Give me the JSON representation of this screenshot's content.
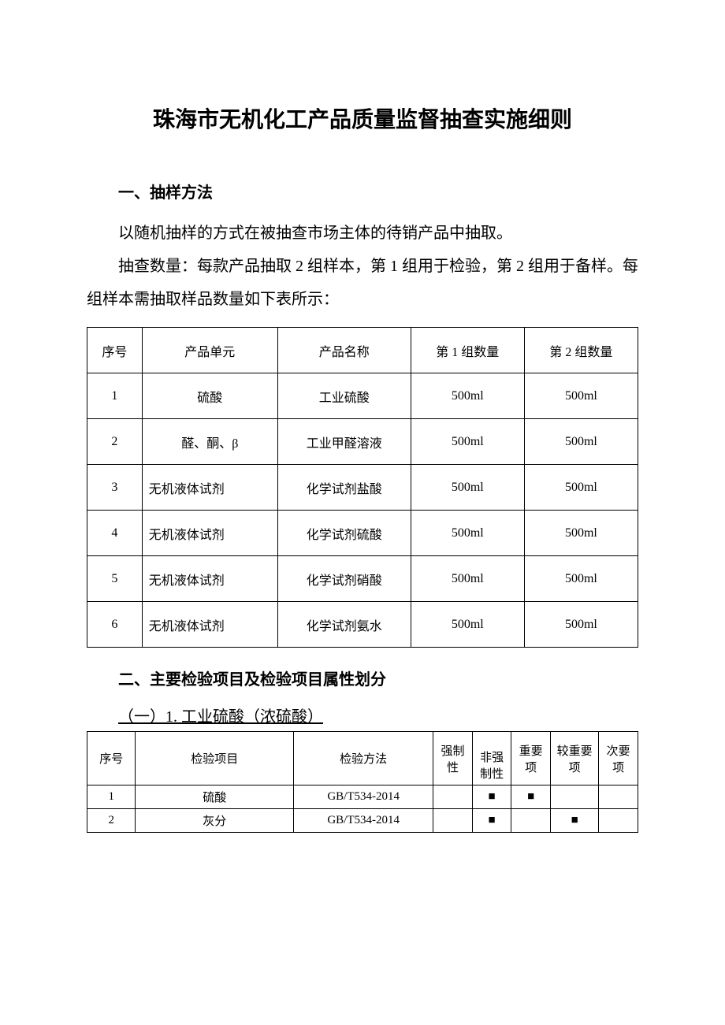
{
  "title": "珠海市无机化工产品质量监督抽查实施细则",
  "section1": {
    "heading": "一、抽样方法",
    "p1": "以随机抽样的方式在被抽查市场主体的待销产品中抽取。",
    "p2": "抽查数量：每款产品抽取 2 组样本，第 1 组用于检验，第 2 组用于备样。每组样本需抽取样品数量如下表所示："
  },
  "table1": {
    "headers": [
      "序号",
      "产品单元",
      "产品名称",
      "第 1 组数量",
      "第 2 组数量"
    ],
    "rows": [
      [
        "1",
        "硫酸",
        "工业硫酸",
        "500ml",
        "500ml"
      ],
      [
        "2",
        "醛、酮、β",
        "工业甲醛溶液",
        "500ml",
        "500ml"
      ],
      [
        "3",
        "无机液体试剂",
        "化学试剂盐酸",
        "500ml",
        "500ml"
      ],
      [
        "4",
        "无机液体试剂",
        "化学试剂硫酸",
        "500ml",
        "500ml"
      ],
      [
        "5",
        "无机液体试剂",
        "化学试剂硝酸",
        "500ml",
        "500ml"
      ],
      [
        "6",
        "无机液体试剂",
        "化学试剂氨水",
        "500ml",
        "500ml"
      ]
    ]
  },
  "section2": {
    "heading": "二、主要检验项目及检验项目属性划分",
    "sub": "（一）1. 工业硫酸（浓硫酸）"
  },
  "table2": {
    "headers": [
      "序号",
      "检验项目",
      "检验方法",
      "强制性",
      "非强制性",
      "重要项",
      "较重要项",
      "次要项"
    ],
    "rows": [
      {
        "n": "1",
        "item": "硫酸",
        "method": "GB/T534-2014",
        "mand": "",
        "nonmand": "■",
        "major": "■",
        "mid": "",
        "minor": ""
      },
      {
        "n": "2",
        "item": "灰分",
        "method": "GB/T534-2014",
        "mand": "",
        "nonmand": "■",
        "major": "",
        "mid": "■",
        "minor": ""
      }
    ]
  },
  "colors": {
    "text": "#000000",
    "bg": "#ffffff",
    "border": "#000000"
  }
}
